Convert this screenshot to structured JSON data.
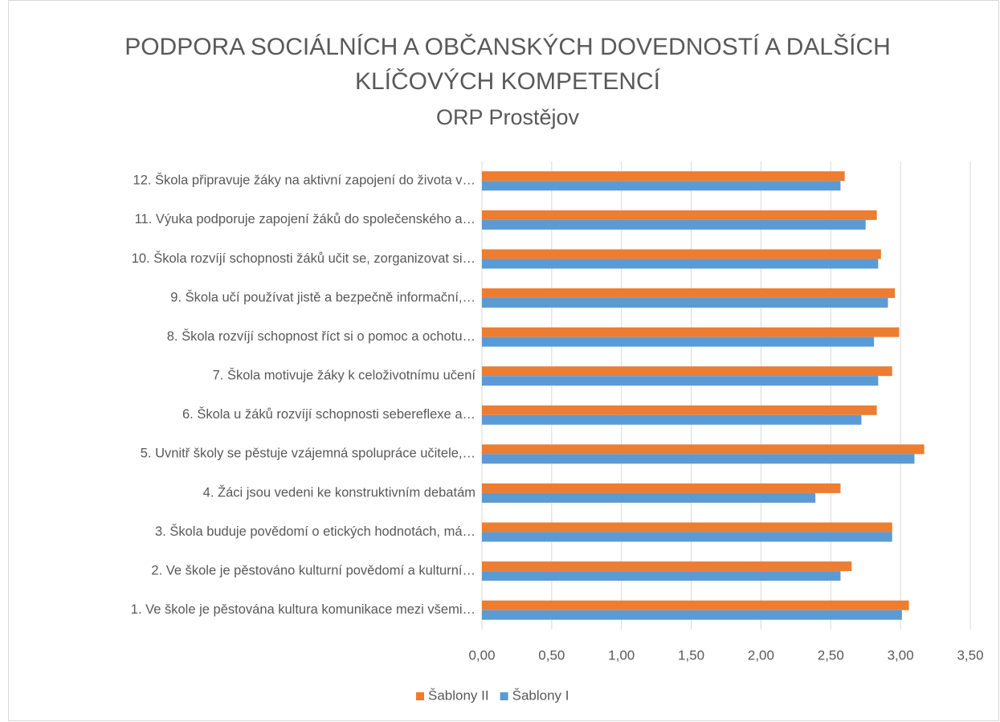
{
  "chart_data": {
    "type": "hbar",
    "title": [
      "PODPORA SOCIÁLNÍCH A OBČANSKÝCH DOVEDNOSTÍ A DALŠÍCH",
      "KLÍČOVÝCH KOMPETENCÍ"
    ],
    "subtitle": "ORP Prostějov",
    "categories": [
      "12. Škola připravuje žáky na aktivní zapojení do života v…",
      "11. Výuka podporuje zapojení žáků do společenského a…",
      "10. Škola rozvíjí schopnosti žáků učit se, zorganizovat si…",
      "9. Škola učí používat jistě a bezpečně informační,…",
      "8. Škola rozvíjí schopnost říct si o pomoc a ochotu…",
      "7. Škola motivuje žáky k celoživotnímu učení",
      "6. Škola u žáků rozvíjí schopnosti sebereflexe a…",
      "5. Uvnitř školy se pěstuje vzájemná spolupráce učitele,…",
      "4. Žáci jsou vedeni ke konstruktivním debatám",
      "3. Škola buduje povědomí o etických hodnotách, má…",
      "2. Ve škole je pěstováno kulturní povědomí a kulturní…",
      "1. Ve škole je pěstována kultura komunikace mezi všemi…"
    ],
    "series": [
      {
        "name": "Šablony II",
        "color": "#ed7d31",
        "values": [
          2.6,
          2.83,
          2.86,
          2.96,
          2.99,
          2.94,
          2.83,
          3.17,
          2.57,
          2.94,
          2.65,
          3.06
        ]
      },
      {
        "name": "Šablony I",
        "color": "#5b9bd5",
        "values": [
          2.57,
          2.75,
          2.84,
          2.91,
          2.81,
          2.84,
          2.72,
          3.1,
          2.39,
          2.94,
          2.57,
          3.01
        ]
      }
    ],
    "xlim": [
      0,
      3.5
    ],
    "xticks": [
      {
        "value": 0,
        "label": "0,00"
      },
      {
        "value": 0.5,
        "label": "0,50"
      },
      {
        "value": 1,
        "label": "1,00"
      },
      {
        "value": 1.5,
        "label": "1,50"
      },
      {
        "value": 2,
        "label": "2,00"
      },
      {
        "value": 2.5,
        "label": "2,50"
      },
      {
        "value": 3,
        "label": "3,00"
      },
      {
        "value": 3.5,
        "label": "3,50"
      }
    ],
    "grid": true,
    "legend": "bottom"
  }
}
